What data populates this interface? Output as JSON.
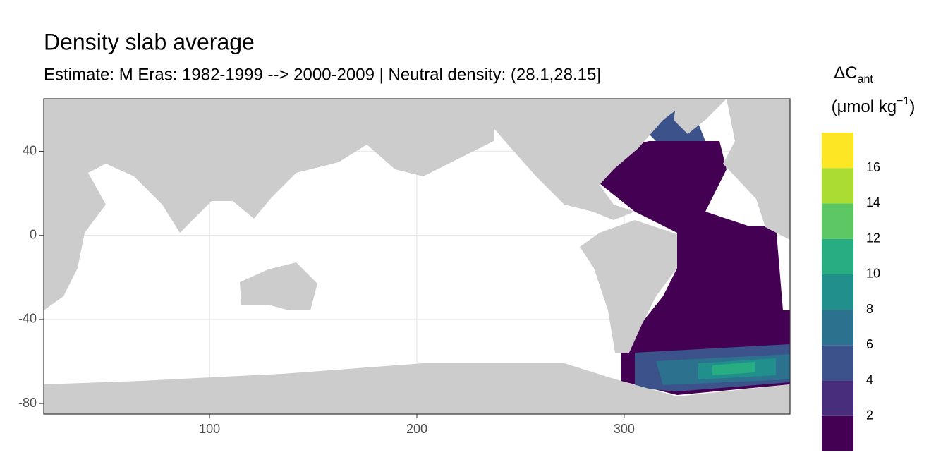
{
  "chart_data": {
    "type": "raster-map",
    "title": "Density slab average",
    "subtitle": "Estimate: M Eras: 1982-1999 --> 2000-2009 | Neutral density: (28.1,28.15]",
    "xlim": [
      20,
      380
    ],
    "ylim": [
      -85,
      65
    ],
    "xticks": [
      100,
      200,
      300
    ],
    "yticks": [
      -80,
      -40,
      0,
      40
    ],
    "grid": true,
    "land_color": "#cccccc",
    "legend": {
      "title_main": "ΔC",
      "title_sub": "ant",
      "unit_main": "(μmol kg",
      "unit_sup": "−1",
      "unit_close": ")",
      "limits": [
        0,
        18
      ],
      "breaks": [
        2,
        4,
        6,
        8,
        10,
        12,
        14,
        16
      ],
      "colors": [
        "#440154",
        "#472d7b",
        "#3b528b",
        "#2c728e",
        "#21908c",
        "#27ad81",
        "#5dc863",
        "#aadc32",
        "#fde725"
      ]
    }
  }
}
